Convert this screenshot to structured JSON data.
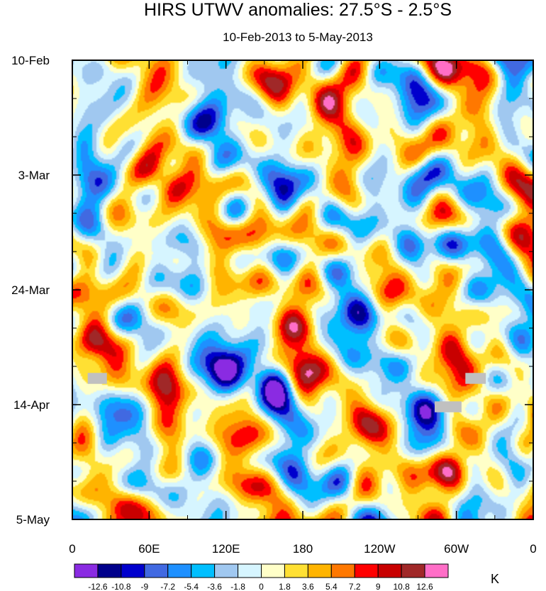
{
  "chart_data": {
    "type": "heatmap",
    "title": "HIRS UTWV anomalies: 27.5°S - 2.5°S",
    "subtitle": "10-Feb-2013 to 5-May-2013",
    "x_ticks": [
      {
        "lon": 0,
        "label": "0"
      },
      {
        "lon": 60,
        "label": "60E"
      },
      {
        "lon": 120,
        "label": "120E"
      },
      {
        "lon": 180,
        "label": "180"
      },
      {
        "lon": 240,
        "label": "120W"
      },
      {
        "lon": 300,
        "label": "60W"
      },
      {
        "lon": 360,
        "label": "0"
      }
    ],
    "xlim": [
      0,
      360
    ],
    "y_ticks": [
      {
        "day": 0,
        "label": "10-Feb"
      },
      {
        "day": 21,
        "label": "3-Mar"
      },
      {
        "day": 42,
        "label": "24-Mar"
      },
      {
        "day": 63,
        "label": "14-Apr"
      },
      {
        "day": 84,
        "label": "5-May"
      }
    ],
    "ylim": [
      0,
      84
    ],
    "contour_levels": [
      -12.6,
      -10.8,
      -9,
      -7.2,
      -5.4,
      -3.6,
      -1.8,
      0,
      1.8,
      3.6,
      5.4,
      7.2,
      9,
      10.8,
      12.6
    ],
    "colors": [
      "#8a2be2",
      "#00008b",
      "#0000cd",
      "#4169e1",
      "#1e90ff",
      "#00bfff",
      "#a0c8f0",
      "#d6f5ff",
      "#ffffc8",
      "#ffe033",
      "#ffb400",
      "#ff7800",
      "#ff0000",
      "#c80000",
      "#a02828",
      "#ff6ec7"
    ],
    "colorbar_labels": [
      "-12.6",
      "-10.8",
      "-9",
      "-7.2",
      "-5.4",
      "-3.6",
      "-1.8",
      "0",
      "1.8",
      "3.6",
      "5.4",
      "7.2",
      "9",
      "10.8",
      "12.6"
    ],
    "units": "K",
    "missing_color": "#c0c0c0",
    "missing_regions": [
      {
        "lon": [
          12,
          27
        ],
        "day": [
          57.2,
          59.2
        ]
      },
      {
        "lon": [
          307,
          323
        ],
        "day": [
          57.2,
          59.2
        ]
      },
      {
        "lon": [
          283,
          304
        ],
        "day": [
          62.4,
          64.4
        ]
      }
    ]
  }
}
